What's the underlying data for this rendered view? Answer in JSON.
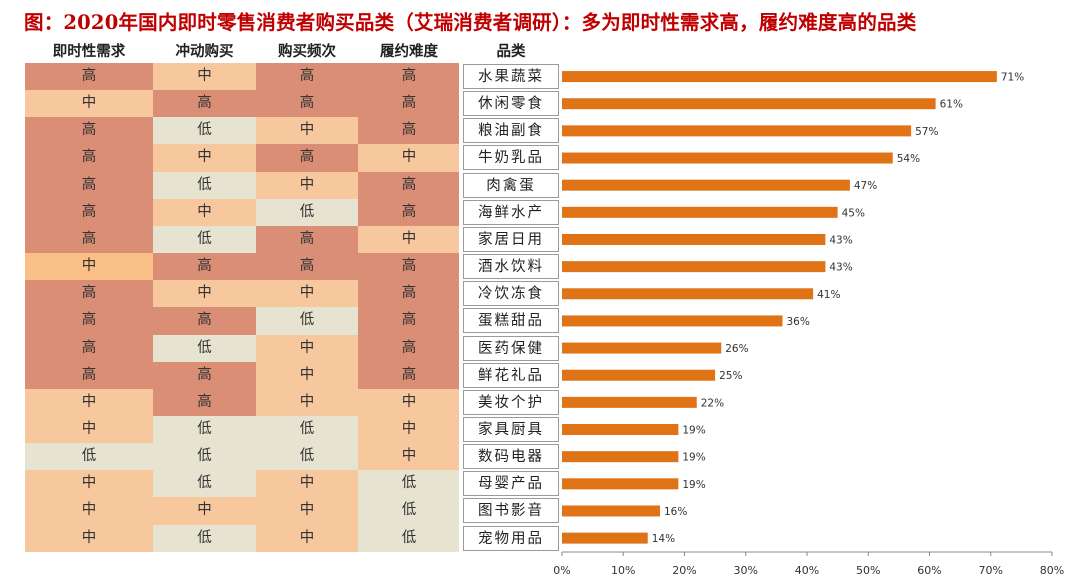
{
  "title": "图：2020年国内即时零售消费者购买品类（艾瑞消费者调研）：多为即时性需求高，履约难度高的品类",
  "table": {
    "headers": [
      "即时性需求",
      "冲动购买",
      "购买频次",
      "履约难度",
      "品类"
    ],
    "rows": [
      [
        "高",
        "中",
        "高",
        "高"
      ],
      [
        "中",
        "高",
        "高",
        "高"
      ],
      [
        "高",
        "低",
        "中",
        "高"
      ],
      [
        "高",
        "中",
        "高",
        "中"
      ],
      [
        "高",
        "低",
        "中",
        "高"
      ],
      [
        "高",
        "中",
        "低",
        "高"
      ],
      [
        "高",
        "低",
        "高",
        "中"
      ],
      [
        "中",
        "高",
        "高",
        "高"
      ],
      [
        "高",
        "中",
        "中",
        "高"
      ],
      [
        "高",
        "高",
        "低",
        "高"
      ],
      [
        "高",
        "低",
        "中",
        "高"
      ],
      [
        "高",
        "高",
        "中",
        "高"
      ],
      [
        "中",
        "高",
        "中",
        "中"
      ],
      [
        "中",
        "低",
        "低",
        "中"
      ],
      [
        "低",
        "低",
        "低",
        "中"
      ],
      [
        "中",
        "低",
        "中",
        "低"
      ],
      [
        "中",
        "中",
        "中",
        "低"
      ],
      [
        "中",
        "低",
        "中",
        "低"
      ]
    ]
  },
  "colors": {
    "高": "#d98e75",
    "中": "#f7c89e",
    "低": "#e7e3d1",
    "row8_中": "#f9bf86",
    "bar": "#e07316"
  },
  "chart_data": {
    "type": "bar",
    "orientation": "horizontal",
    "categories": [
      "水果蔬菜",
      "休闲零食",
      "粮油副食",
      "牛奶乳品",
      "肉禽蛋",
      "海鲜水产",
      "家居日用",
      "酒水饮料",
      "冷饮冻食",
      "蛋糕甜品",
      "医药保健",
      "鲜花礼品",
      "美妆个护",
      "家具厨具",
      "数码电器",
      "母婴产品",
      "图书影音",
      "宠物用品"
    ],
    "values": [
      71,
      61,
      57,
      54,
      47,
      45,
      43,
      43,
      41,
      36,
      26,
      25,
      22,
      19,
      19,
      19,
      16,
      14
    ],
    "value_labels": [
      "71%",
      "61%",
      "57%",
      "54%",
      "47%",
      "45%",
      "43%",
      "43%",
      "41%",
      "36%",
      "26%",
      "25%",
      "22%",
      "19%",
      "19%",
      "19%",
      "16%",
      "14%"
    ],
    "xlim": [
      0,
      80
    ],
    "xticks": [
      0,
      10,
      20,
      30,
      40,
      50,
      60,
      70,
      80
    ],
    "xtick_labels": [
      "0%",
      "10%",
      "20%",
      "30%",
      "40%",
      "50%",
      "60%",
      "70%",
      "80%"
    ],
    "title": "",
    "xlabel": "",
    "ylabel": ""
  }
}
